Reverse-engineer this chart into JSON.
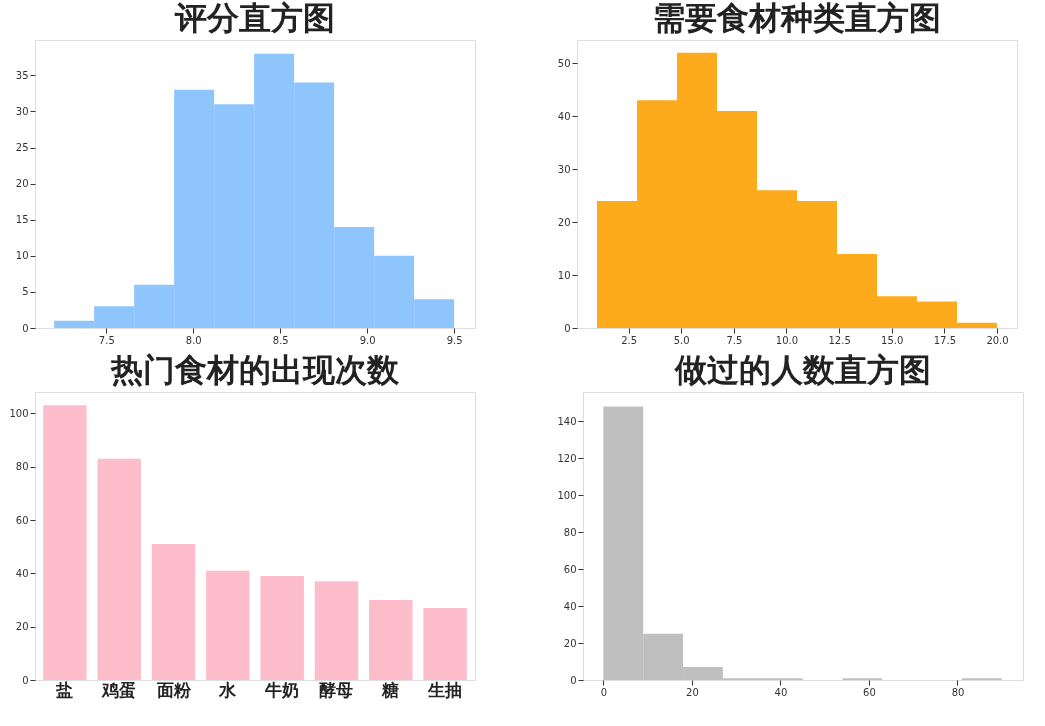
{
  "chart_data": [
    {
      "type": "histogram",
      "title": "评分直方图",
      "color": "#8ec5fd",
      "grid": false,
      "bins": [
        7.2,
        7.43,
        7.66,
        7.89,
        8.12,
        8.35,
        8.58,
        8.81,
        9.04,
        9.27,
        9.5
      ],
      "values": [
        1,
        3,
        6,
        33,
        31,
        38,
        34,
        14,
        10,
        4
      ],
      "xlim": [
        7.09,
        9.62
      ],
      "xticks": [
        7.5,
        {
          "value": 8,
          "label": "8.0"
        },
        8.5,
        {
          "value": 9,
          "label": "9.0"
        },
        9.5
      ],
      "ylim": [
        0,
        39.9
      ],
      "yticks": [
        0,
        5,
        10,
        15,
        20,
        25,
        30,
        35
      ]
    },
    {
      "type": "histogram",
      "title": "需要食材种类直方图",
      "color": "#fdab1c",
      "grid": false,
      "bins": [
        1,
        2.9,
        4.8,
        6.7,
        8.6,
        10.5,
        12.4,
        14.3,
        16.2,
        18.1,
        20
      ],
      "values": [
        24,
        43,
        52,
        41,
        26,
        24,
        14,
        6,
        5,
        1
      ],
      "xlim": [
        0.05,
        20.95
      ],
      "xticks": [
        2.5,
        {
          "value": 5,
          "label": "5.0"
        },
        7.5,
        {
          "value": 10,
          "label": "10.0"
        },
        12.5,
        {
          "value": 15,
          "label": "15.0"
        },
        17.5,
        {
          "value": 20,
          "label": "20.0"
        }
      ],
      "ylim": [
        0,
        54.4
      ],
      "yticks": [
        0,
        10,
        20,
        30,
        40,
        50
      ]
    },
    {
      "type": "bar",
      "title": "热门食材的出现次数",
      "color": "#fdbdcb",
      "grid": false,
      "categories": [
        "盐",
        "鸡蛋",
        "面粉",
        "水",
        "牛奶",
        "酵母",
        "糖",
        "生抽"
      ],
      "values": [
        103,
        83,
        51,
        41,
        39,
        37,
        30,
        27
      ],
      "ylim": [
        0,
        108
      ],
      "yticks": [
        0,
        20,
        40,
        60,
        80,
        100
      ]
    },
    {
      "type": "histogram",
      "title": "做过的人数直方图",
      "color": "#bfbfbf",
      "grid": false,
      "bins": [
        0,
        9,
        18,
        27,
        36,
        45,
        54,
        63,
        72,
        81,
        90
      ],
      "values": [
        148,
        25,
        7,
        1,
        1,
        0,
        1,
        0,
        0,
        1
      ],
      "xlim": [
        -4.6,
        94.8
      ],
      "xticks": [
        0,
        20,
        40,
        60,
        80
      ],
      "ylim": [
        0,
        155.8
      ],
      "yticks": [
        0,
        20,
        40,
        60,
        80,
        100,
        120,
        140
      ]
    }
  ]
}
